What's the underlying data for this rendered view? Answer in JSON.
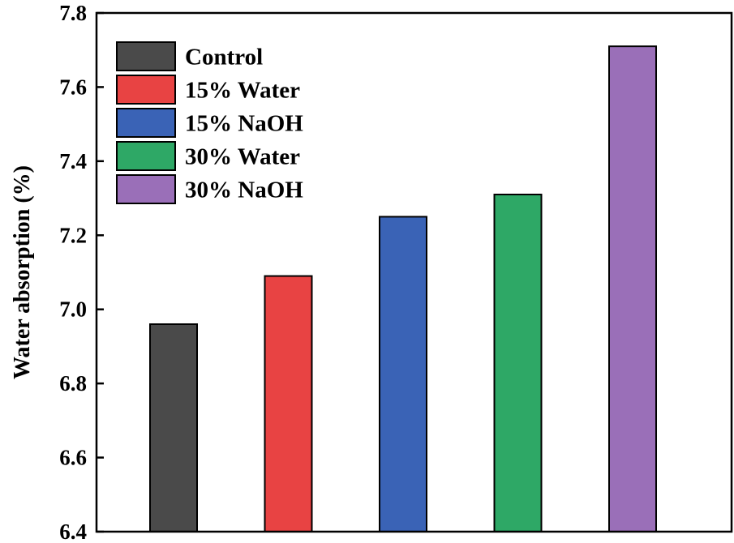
{
  "chart_data": {
    "type": "bar",
    "title": "",
    "xlabel": "",
    "ylabel": "Water absorption (%)",
    "ylim": [
      6.4,
      7.8
    ],
    "yticks": [
      "6.4",
      "6.6",
      "6.8",
      "7.0",
      "7.2",
      "7.4",
      "7.6",
      "7.8"
    ],
    "grid": false,
    "legend_position": "top-left",
    "categories": [
      "Control",
      "15% Water",
      "15% NaOH",
      "30% Water",
      "30% NaOH"
    ],
    "values": [
      6.96,
      7.09,
      7.25,
      7.31,
      7.71
    ],
    "colors": [
      "#4a4a4a",
      "#e84343",
      "#3a63b6",
      "#2ea866",
      "#9a6fb8"
    ]
  }
}
